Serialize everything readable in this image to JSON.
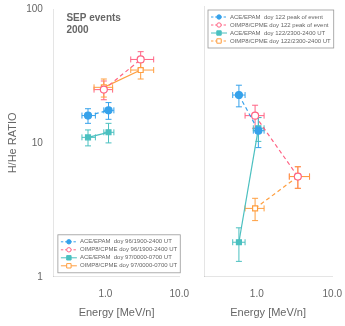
{
  "chart_data": [
    {
      "type": "line",
      "title": "SEP events\n2000",
      "x_label": "Energy [MeV/n]",
      "y_label": "H/He RATIO",
      "log": true,
      "grid": false,
      "legend": "lower left",
      "xlim": [
        0.2,
        10.0
      ],
      "ylim": [
        1,
        100
      ],
      "xticks": [
        {
          "value": 1.0,
          "label": "1.0"
        },
        {
          "value": 10.0,
          "label": "10.0"
        }
      ],
      "yticks": [
        1,
        10,
        100
      ],
      "series": [
        {
          "name": "ACE/EPAM  doy 96/1900-2400 UT",
          "color": "#36a2eb",
          "marker": "filled_circle",
          "line_style": "dashed",
          "x": [
            0.58,
            1.1
          ],
          "values": [
            16.0,
            17.5
          ],
          "x_error": [
            [
              0.1,
              0.15
            ],
            [
              0.15,
              0.2
            ]
          ],
          "y_error": [
            2.0,
            2.5
          ]
        },
        {
          "name": "OIMP8/CPME doy 96/1900-2400 UT",
          "color": "#ff6384",
          "marker": "open_circle",
          "line_style": "dashed",
          "x": [
            0.95,
            3.0
          ],
          "values": [
            25.0,
            42.0
          ],
          "x_error": [
            [
              0.25,
              0.3
            ],
            [
              0.8,
              1.5
            ]
          ],
          "y_error": [
            4.0,
            6.0
          ]
        },
        {
          "name": "ACE/EPAM  doy 97/0000-0700 UT",
          "color": "#4bc0c0",
          "marker": "filled_square",
          "line_style": "solid",
          "x": [
            0.58,
            1.1
          ],
          "values": [
            11.0,
            12.0
          ],
          "x_error": [
            [
              0.1,
              0.15
            ],
            [
              0.15,
              0.2
            ]
          ],
          "y_error": [
            1.5,
            2.0
          ]
        },
        {
          "name": "OIMP8/CPME doy 97/0000-0700 UT",
          "color": "#ff9f40",
          "marker": "open_square",
          "line_style": "solid",
          "x": [
            0.95,
            3.0
          ],
          "values": [
            26.0,
            35.0
          ],
          "x_error": [
            [
              0.25,
              0.3
            ],
            [
              0.8,
              1.5
            ]
          ],
          "y_error": [
            4.0,
            5.0
          ]
        }
      ]
    },
    {
      "type": "line",
      "x_label": "Energy [MeV/n]",
      "log": true,
      "grid": false,
      "legend": "upper left",
      "tick_labels": "x",
      "xlim": [
        0.2,
        10.0
      ],
      "ylim": [
        1,
        100
      ],
      "xticks": [
        {
          "value": 1.0,
          "label": "1.0"
        },
        {
          "value": 10.0,
          "label": "10.0"
        }
      ],
      "yticks": [
        1,
        10,
        100
      ],
      "series": [
        {
          "name": "ACE/EPAM  doy 122 peak of event",
          "color": "#36a2eb",
          "marker": "filled_circle",
          "line_style": "dashed",
          "x": [
            0.58,
            1.05
          ],
          "values": [
            22.0,
            12.0
          ],
          "x_error": [
            [
              0.1,
              0.12
            ],
            [
              0.15,
              0.2
            ]
          ],
          "y_error": [
            4.0,
            3.0
          ]
        },
        {
          "name": "OIMP8/CPME doy 122 peak of event",
          "color": "#ff6384",
          "marker": "open_circle",
          "line_style": "dashed",
          "x": [
            0.95,
            3.5
          ],
          "values": [
            15.5,
            5.5
          ],
          "x_error": [
            [
              0.25,
              0.3
            ],
            [
              0.8,
              1.5
            ]
          ],
          "y_error": [
            3.0,
            1.0
          ]
        },
        {
          "name": "ACE/EPAM  doy 122/2300-2400 UT",
          "color": "#4bc0c0",
          "marker": "filled_square",
          "line_style": "solid",
          "x": [
            0.58,
            1.05
          ],
          "values": [
            1.8,
            12.5
          ],
          "x_error": [
            [
              0.1,
              0.12
            ],
            [
              0.15,
              0.2
            ]
          ],
          "y_error": [
            0.5,
            2.5
          ]
        },
        {
          "name": "OIMP8/CPME doy 122/2300-2400 UT",
          "color": "#ff9f40",
          "marker": "open_square",
          "line_style": "dashed",
          "x": [
            0.95,
            3.5
          ],
          "values": [
            3.2,
            5.5
          ],
          "x_error": [
            [
              0.25,
              0.3
            ],
            [
              0.8,
              1.5
            ]
          ],
          "y_error": [
            0.6,
            1.0
          ]
        }
      ]
    }
  ]
}
